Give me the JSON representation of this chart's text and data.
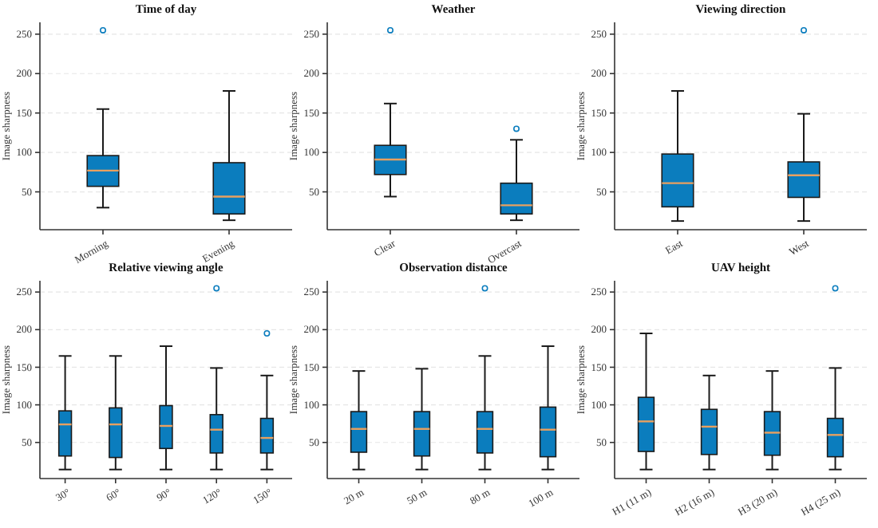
{
  "chart_data": [
    {
      "type": "box",
      "title": "Time of day",
      "ylabel": "Image sharpness",
      "categories": [
        "Morning",
        "Evening"
      ],
      "ylim": [
        2,
        265
      ],
      "yticks": [
        50,
        100,
        150,
        200,
        250
      ],
      "grid": "y",
      "color": "#0b7dbe",
      "boxes": [
        {
          "low": 30,
          "q1": 57,
          "median": 77,
          "q3": 96,
          "high": 155,
          "outliers": [
            255
          ]
        },
        {
          "low": 14,
          "q1": 22,
          "median": 44,
          "q3": 87,
          "high": 178
        }
      ]
    },
    {
      "type": "box",
      "title": "Weather",
      "ylabel": "Image sharpness",
      "categories": [
        "Clear",
        "Overcast"
      ],
      "ylim": [
        2,
        265
      ],
      "yticks": [
        50,
        100,
        150,
        200,
        250
      ],
      "grid": "y",
      "color": "#0b7dbe",
      "boxes": [
        {
          "low": 44,
          "q1": 72,
          "median": 91,
          "q3": 109,
          "high": 162,
          "outliers": [
            255
          ]
        },
        {
          "low": 14,
          "q1": 22,
          "median": 33,
          "q3": 61,
          "high": 116,
          "outliers": [
            130
          ]
        }
      ]
    },
    {
      "type": "box",
      "title": "Viewing direction",
      "ylabel": "Image sharpness",
      "categories": [
        "East",
        "West"
      ],
      "ylim": [
        2,
        265
      ],
      "yticks": [
        50,
        100,
        150,
        200,
        250
      ],
      "grid": "y",
      "color": "#0b7dbe",
      "boxes": [
        {
          "low": 13,
          "q1": 31,
          "median": 61,
          "q3": 98,
          "high": 178
        },
        {
          "low": 13,
          "q1": 43,
          "median": 71,
          "q3": 88,
          "high": 149,
          "outliers": [
            255
          ]
        }
      ]
    },
    {
      "type": "box",
      "title": "Relative viewing angle",
      "ylabel": "Image sharpness",
      "categories": [
        "30°",
        "60°",
        "90°",
        "120°",
        "150°"
      ],
      "ylim": [
        2,
        265
      ],
      "yticks": [
        50,
        100,
        150,
        200,
        250
      ],
      "grid": "y",
      "color": "#0b7dbe",
      "boxes": [
        {
          "low": 14,
          "q1": 32,
          "median": 74,
          "q3": 92,
          "high": 165
        },
        {
          "low": 14,
          "q1": 30,
          "median": 74,
          "q3": 96,
          "high": 165
        },
        {
          "low": 14,
          "q1": 42,
          "median": 72,
          "q3": 99,
          "high": 178
        },
        {
          "low": 14,
          "q1": 36,
          "median": 67,
          "q3": 87,
          "high": 149,
          "outliers": [
            255
          ]
        },
        {
          "low": 14,
          "q1": 36,
          "median": 56,
          "q3": 82,
          "high": 139,
          "outliers": [
            195
          ]
        }
      ]
    },
    {
      "type": "box",
      "title": "Observation distance",
      "ylabel": "Image sharpness",
      "categories": [
        "20 m",
        "50 m",
        "80 m",
        "100 m"
      ],
      "ylim": [
        2,
        265
      ],
      "yticks": [
        50,
        100,
        150,
        200,
        250
      ],
      "grid": "y",
      "color": "#0b7dbe",
      "boxes": [
        {
          "low": 14,
          "q1": 37,
          "median": 68,
          "q3": 91,
          "high": 145
        },
        {
          "low": 14,
          "q1": 32,
          "median": 68,
          "q3": 91,
          "high": 148
        },
        {
          "low": 14,
          "q1": 36,
          "median": 68,
          "q3": 91,
          "high": 165,
          "outliers": [
            255
          ]
        },
        {
          "low": 14,
          "q1": 31,
          "median": 67,
          "q3": 97,
          "high": 178
        }
      ]
    },
    {
      "type": "box",
      "title": "UAV height",
      "ylabel": "Image sharpness",
      "categories": [
        "H1 (11 m)",
        "H2 (16 m)",
        "H3 (20 m)",
        "H4 (25 m)"
      ],
      "ylim": [
        2,
        265
      ],
      "yticks": [
        50,
        100,
        150,
        200,
        250
      ],
      "grid": "y",
      "color": "#0b7dbe",
      "boxes": [
        {
          "low": 14,
          "q1": 38,
          "median": 78,
          "q3": 110,
          "high": 195
        },
        {
          "low": 14,
          "q1": 34,
          "median": 71,
          "q3": 94,
          "high": 139
        },
        {
          "low": 14,
          "q1": 33,
          "median": 63,
          "q3": 91,
          "high": 145
        },
        {
          "low": 14,
          "q1": 31,
          "median": 60,
          "q3": 82,
          "high": 149,
          "outliers": [
            255
          ]
        }
      ]
    }
  ]
}
